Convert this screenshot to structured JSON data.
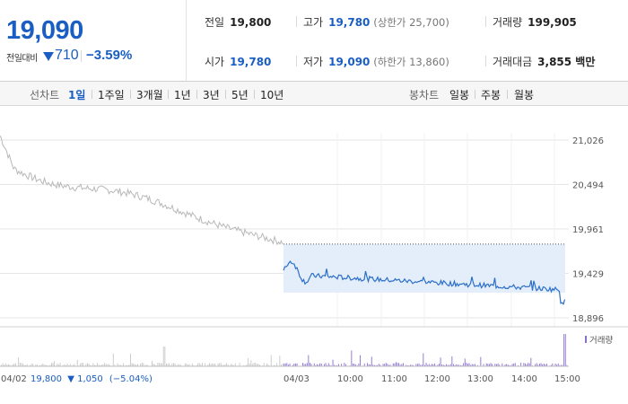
{
  "quote": {
    "price": "19,090",
    "change_label": "전일대비",
    "change_value": "710",
    "change_pct": "−3.59%",
    "colors": {
      "down": "#1a5ec4"
    }
  },
  "stats": {
    "prev_close": {
      "label": "전일",
      "value": "19,800"
    },
    "high": {
      "label": "고가",
      "value": "19,780",
      "limit": "(상한가 25,700)"
    },
    "volume": {
      "label": "거래량",
      "value": "199,905"
    },
    "open": {
      "label": "시가",
      "value": "19,780"
    },
    "low": {
      "label": "저가",
      "value": "19,090",
      "limit": "(하한가 13,860)"
    },
    "turnover": {
      "label": "거래대금",
      "value": "3,855 백만"
    }
  },
  "period_bar": {
    "line_label": "선차트",
    "line_options": [
      "1일",
      "1주일",
      "3개월",
      "1년",
      "3년",
      "5년",
      "10년"
    ],
    "selected": "1일",
    "candle_label": "봉차트",
    "candle_options": [
      "일봉",
      "주봉",
      "월봉"
    ]
  },
  "chart_data": {
    "type": "line",
    "y_ticks": [
      "21,026",
      "20,494",
      "19,961",
      "19,429",
      "18,896"
    ],
    "ylim": [
      18896,
      21026
    ],
    "previous_day": {
      "date": "04/02",
      "close": "19,800",
      "change": "1,050",
      "change_pct": "(−5.04%)",
      "color": "#b8b8b8"
    },
    "today": {
      "date": "04/03",
      "open_price": 19780,
      "color": "#2b6fc9",
      "fill": "#e4eefa"
    },
    "x_ticks": [
      "04/02",
      "04/03",
      "10:00",
      "11:00",
      "12:00",
      "13:00",
      "14:00",
      "15:00"
    ],
    "volume_legend": "거래량",
    "volume_color": "#8a6fd1"
  }
}
